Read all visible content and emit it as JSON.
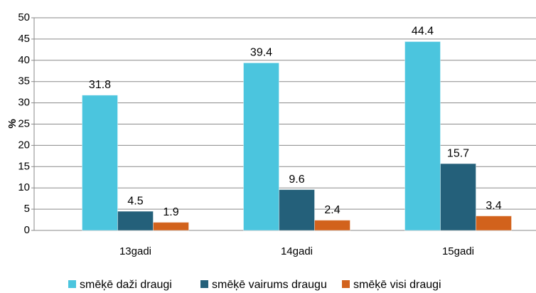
{
  "chart_data": {
    "type": "bar",
    "y_label": "%",
    "categories": [
      "13gadi",
      "14gadi",
      "15gadi"
    ],
    "series": [
      {
        "name": "smēķē daži draugi",
        "color": "#4bc5de",
        "values": [
          31.8,
          39.4,
          44.4
        ]
      },
      {
        "name": "smēķē vairums draugu",
        "color": "#24607a",
        "values": [
          4.5,
          9.6,
          15.7
        ]
      },
      {
        "name": "smēķē visi draugi",
        "color": "#d2621c",
        "values": [
          1.9,
          2.4,
          3.4
        ]
      }
    ],
    "ylim": [
      0,
      50
    ],
    "yticks": [
      0,
      5,
      10,
      15,
      20,
      25,
      30,
      35,
      40,
      45,
      50
    ],
    "grid": true,
    "legend": "bottom"
  }
}
